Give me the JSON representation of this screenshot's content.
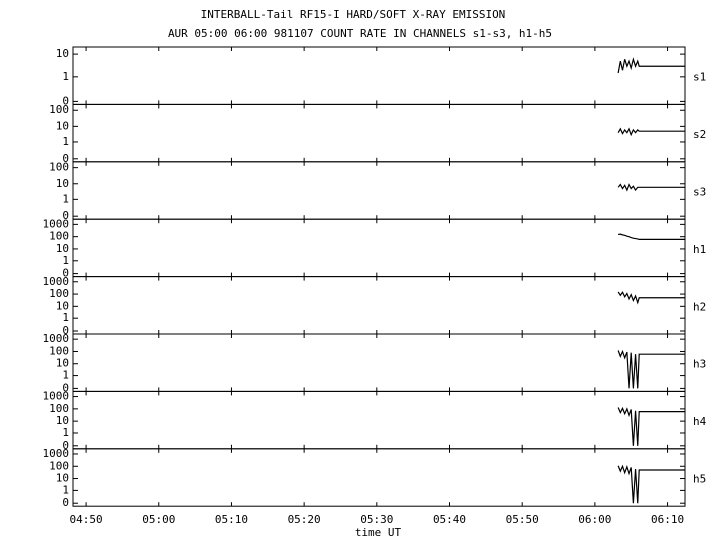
{
  "chart_data": [
    {
      "type": "line",
      "title": "INTERBALL-Tail RF15-I HARD/SOFT X-RAY EMISSION",
      "subtitle": "AUR 05:00 06:00 981107  COUNT RATE IN CHANNELS s1-s3, h1-h5",
      "label": "s1",
      "yscale": "symlog",
      "color": "#000000",
      "x": [
        363.2,
        363.5,
        363.8,
        364.1,
        364.4,
        364.7,
        365.0,
        365.3,
        365.6,
        365.9,
        366.1,
        372.4
      ],
      "values": [
        1.5,
        5,
        2,
        6,
        3,
        5,
        2.5,
        6,
        3,
        5,
        3,
        3
      ],
      "xlim": [
        288.2,
        372.4
      ],
      "ylim": [
        0,
        15
      ],
      "yticks": [
        0,
        1,
        10
      ]
    },
    {
      "type": "line",
      "label": "s2",
      "yscale": "symlog",
      "color": "#000000",
      "x": [
        363.2,
        363.5,
        363.8,
        364.1,
        364.4,
        364.7,
        365.0,
        365.3,
        365.6,
        365.9,
        366.1,
        372.4
      ],
      "values": [
        4,
        7,
        3.5,
        6,
        4,
        7,
        3,
        6,
        4,
        6,
        5,
        5
      ],
      "xlim": [
        288.2,
        372.4
      ],
      "ylim": [
        0,
        150
      ],
      "yticks": [
        0,
        1,
        10,
        100
      ]
    },
    {
      "type": "line",
      "label": "s3",
      "yscale": "symlog",
      "color": "#000000",
      "x": [
        363.2,
        363.5,
        363.8,
        364.1,
        364.4,
        364.7,
        365.0,
        365.3,
        365.6,
        365.9,
        366.1,
        372.4
      ],
      "values": [
        6,
        9,
        5,
        8,
        4,
        9,
        5,
        7,
        4,
        6,
        6,
        6
      ],
      "xlim": [
        288.2,
        372.4
      ],
      "ylim": [
        0,
        150
      ],
      "yticks": [
        0,
        1,
        10,
        100
      ]
    },
    {
      "type": "line",
      "label": "h1",
      "yscale": "symlog",
      "color": "#000000",
      "x": [
        363.2,
        363.5,
        363.8,
        364.1,
        364.4,
        364.7,
        365.0,
        365.3,
        365.6,
        365.9,
        366.1,
        372.4
      ],
      "values": [
        150,
        160,
        140,
        130,
        110,
        100,
        85,
        75,
        70,
        65,
        60,
        60
      ],
      "xlim": [
        288.2,
        372.4
      ],
      "ylim": [
        0,
        1500
      ],
      "yticks": [
        0,
        1,
        10,
        100,
        1000
      ]
    },
    {
      "type": "line",
      "label": "h2",
      "yscale": "symlog",
      "color": "#000000",
      "x": [
        363.2,
        363.5,
        363.8,
        364.1,
        364.4,
        364.7,
        365.0,
        365.3,
        365.6,
        365.9,
        366.1,
        372.4
      ],
      "values": [
        150,
        80,
        140,
        60,
        110,
        40,
        90,
        30,
        70,
        20,
        50,
        50
      ],
      "xlim": [
        288.2,
        372.4
      ],
      "ylim": [
        0,
        1500
      ],
      "yticks": [
        0,
        1,
        10,
        100,
        1000
      ]
    },
    {
      "type": "line",
      "label": "h3",
      "yscale": "symlog",
      "color": "#000000",
      "x": [
        363.2,
        363.5,
        363.8,
        364.1,
        364.4,
        364.7,
        365.0,
        365.3,
        365.6,
        365.9,
        366.1,
        372.4
      ],
      "values": [
        120,
        40,
        100,
        30,
        90,
        0,
        80,
        0,
        60,
        0,
        60,
        60
      ],
      "xlim": [
        288.2,
        372.4
      ],
      "ylim": [
        0,
        1500
      ],
      "yticks": [
        0,
        1,
        10,
        100,
        1000
      ]
    },
    {
      "type": "line",
      "label": "h4",
      "yscale": "symlog",
      "color": "#000000",
      "x": [
        363.2,
        363.5,
        363.8,
        364.1,
        364.4,
        364.7,
        365.0,
        365.3,
        365.6,
        365.9,
        366.1,
        372.4
      ],
      "values": [
        130,
        50,
        110,
        40,
        100,
        30,
        90,
        0,
        70,
        0,
        60,
        60
      ],
      "xlim": [
        288.2,
        372.4
      ],
      "ylim": [
        0,
        1500
      ],
      "yticks": [
        0,
        1,
        10,
        100,
        1000
      ]
    },
    {
      "type": "line",
      "label": "h5",
      "yscale": "symlog",
      "color": "#000000",
      "x": [
        363.2,
        363.5,
        363.8,
        364.1,
        364.4,
        364.7,
        365.0,
        365.3,
        365.6,
        365.9,
        366.1,
        372.4
      ],
      "values": [
        110,
        40,
        100,
        30,
        90,
        25,
        80,
        0,
        60,
        0,
        50,
        50
      ],
      "xlim": [
        288.2,
        372.4
      ],
      "ylim": [
        0,
        1500
      ],
      "yticks": [
        0,
        1,
        10,
        100,
        1000
      ],
      "xlabel": "time UT",
      "xticks": [
        {
          "value": 290,
          "label": "04:50"
        },
        {
          "value": 300,
          "label": "05:00"
        },
        {
          "value": 310,
          "label": "05:10"
        },
        {
          "value": 320,
          "label": "05:20"
        },
        {
          "value": 330,
          "label": "05:30"
        },
        {
          "value": 340,
          "label": "05:40"
        },
        {
          "value": 350,
          "label": "05:50"
        },
        {
          "value": 360,
          "label": "06:00"
        },
        {
          "value": 370,
          "label": "06:10"
        }
      ]
    }
  ]
}
